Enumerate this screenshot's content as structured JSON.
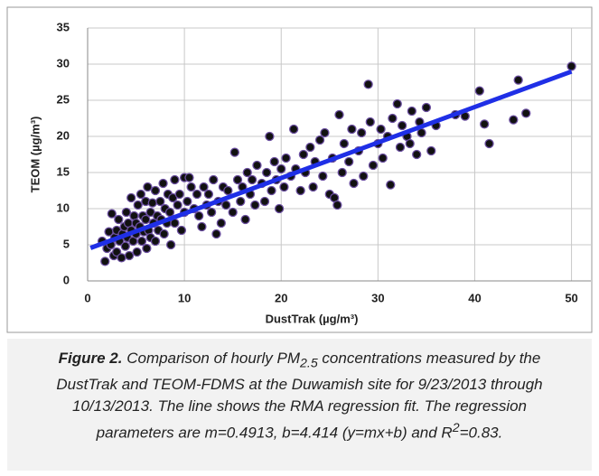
{
  "chart_data": {
    "type": "scatter",
    "xlabel": "DustTrak (µg/m³)",
    "ylabel": "TEOM (µg/m³)",
    "xlim": [
      0,
      52
    ],
    "xticks": [
      0,
      10,
      20,
      30,
      40,
      50
    ],
    "ylim": [
      0,
      35
    ],
    "yticks": [
      0,
      5,
      10,
      15,
      20,
      25,
      30,
      35
    ],
    "grid": true,
    "series": [
      {
        "type": "scatter",
        "color": "#111111",
        "edgecolor": "#6b4fa0",
        "x": [
          1.5,
          1.8,
          2,
          2.2,
          2.4,
          2.5,
          2.7,
          2.8,
          3,
          3,
          3.2,
          3.3,
          3.5,
          3.6,
          3.8,
          3.9,
          4,
          4.1,
          4.2,
          4.3,
          4.5,
          4.5,
          4.7,
          4.8,
          5,
          5,
          5.1,
          5.2,
          5.4,
          5.5,
          5.6,
          5.7,
          5.8,
          6,
          6,
          6.1,
          6.2,
          6.3,
          6.5,
          6.5,
          6.7,
          6.8,
          7,
          7,
          7.2,
          7.3,
          7.5,
          7.6,
          7.8,
          7.9,
          8,
          8.2,
          8.3,
          8.5,
          8.6,
          8.8,
          9,
          9,
          9.3,
          9.5,
          9.7,
          10,
          10,
          10.3,
          10.5,
          10.7,
          11,
          11.3,
          11.5,
          11.8,
          12,
          12.3,
          12.5,
          12.8,
          13,
          13.3,
          13.5,
          13.8,
          14,
          14.3,
          14.5,
          15,
          15.2,
          15.5,
          15.8,
          16,
          16.3,
          16.5,
          16.8,
          17,
          17.3,
          17.5,
          18,
          18.3,
          18.5,
          18.8,
          19,
          19.3,
          19.5,
          19.8,
          20,
          20.3,
          20.5,
          21,
          21.3,
          21.5,
          22,
          22.3,
          22.5,
          23,
          23.3,
          23.5,
          24,
          24.3,
          24.5,
          25,
          25.3,
          25.5,
          25.8,
          26,
          26.3,
          26.5,
          27,
          27.3,
          27.5,
          28,
          28.3,
          28.5,
          29,
          29.2,
          29.5,
          30,
          30.3,
          30.5,
          31,
          31.3,
          31.5,
          32,
          32.3,
          32.5,
          33,
          33.3,
          33.5,
          34,
          34.3,
          34.5,
          35,
          35.5,
          36,
          38,
          39,
          40.5,
          41,
          41.5,
          44,
          44.5,
          45.3,
          50
        ],
        "values": [
          5.5,
          2.7,
          4.5,
          6.8,
          5,
          9.3,
          3.5,
          6,
          7,
          4,
          8.5,
          5.5,
          3.2,
          6.5,
          7.5,
          4.8,
          9.5,
          6,
          8,
          3.5,
          11.5,
          7,
          5.5,
          9,
          6.5,
          8,
          4,
          10.5,
          7.5,
          12,
          5.5,
          9,
          6.8,
          11,
          8.5,
          4.5,
          13,
          7,
          9.5,
          6,
          10.8,
          8,
          12.5,
          5.5,
          9,
          7,
          11,
          8.5,
          13.5,
          6.5,
          10,
          8,
          12,
          9.5,
          5,
          11.5,
          14,
          8,
          10.5,
          12,
          7,
          14.3,
          9.5,
          11,
          14.3,
          13,
          10,
          12,
          9,
          7.5,
          13,
          10.5,
          12,
          9.5,
          14,
          6.5,
          11,
          8,
          13,
          10.5,
          12.5,
          9.5,
          17.8,
          14,
          11,
          13,
          8.5,
          15,
          12,
          14,
          10.5,
          16,
          13.5,
          11,
          15,
          20,
          12.5,
          16.5,
          14,
          10,
          15.5,
          13,
          17,
          14.5,
          21,
          15.5,
          12.5,
          17.5,
          15,
          18.5,
          13,
          16.5,
          19.5,
          14.5,
          20.5,
          12,
          17,
          11.5,
          10.5,
          23,
          15,
          19,
          16.5,
          21,
          13.5,
          18,
          20.5,
          14.5,
          27.2,
          22,
          16,
          19,
          21,
          17,
          20,
          13.3,
          22.5,
          24.5,
          18.5,
          21.5,
          20,
          19,
          23.5,
          17.5,
          22,
          20.5,
          24,
          18,
          21.5,
          23,
          22.8,
          26.3,
          21.7,
          19,
          22.3,
          27.8,
          23.2,
          29.7
        ]
      },
      {
        "type": "line",
        "color": "#1f2fe6",
        "x": [
          0.3,
          50
        ],
        "values": [
          4.56,
          28.98
        ]
      }
    ]
  },
  "caption": {
    "label": "Figure 2.",
    "text1": " Comparison of hourly PM",
    "sub": "2.5",
    "text2": " concentrations measured by the DustTrak and TEOM-FDMS at the Duwamish site for 9/23/2013 through 10/13/2013. The line shows the RMA regression fit. The regression parameters are m=0.4913, b=4.414 (y=mx+b) and R",
    "sup": "2",
    "text3": "=0.83."
  }
}
